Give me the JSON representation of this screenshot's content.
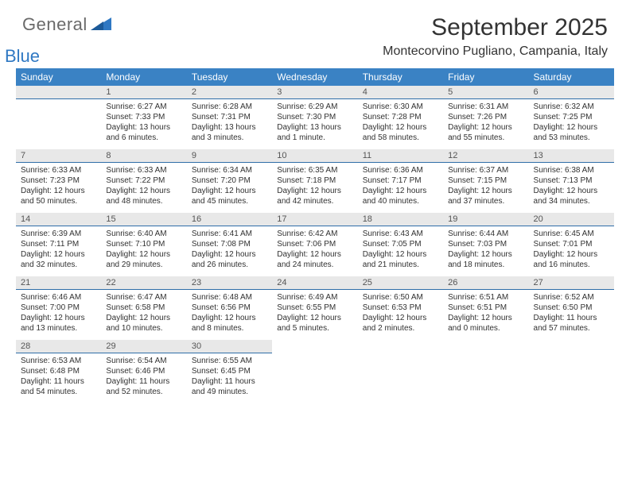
{
  "logo": {
    "general": "General",
    "blue": "Blue"
  },
  "title": "September 2025",
  "location": "Montecorvino Pugliano, Campania, Italy",
  "colors": {
    "header_bg": "#3a82c4",
    "header_text": "#ffffff",
    "band_bg": "#e8e8e8",
    "band_border": "#2f6ea8",
    "logo_blue": "#2f78c3",
    "logo_gray": "#6a6a6a"
  },
  "dow": [
    "Sunday",
    "Monday",
    "Tuesday",
    "Wednesday",
    "Thursday",
    "Friday",
    "Saturday"
  ],
  "weeks": [
    [
      {
        "num": "",
        "sunrise": "",
        "sunset": "",
        "daylight": ""
      },
      {
        "num": "1",
        "sunrise": "Sunrise: 6:27 AM",
        "sunset": "Sunset: 7:33 PM",
        "daylight": "Daylight: 13 hours and 6 minutes."
      },
      {
        "num": "2",
        "sunrise": "Sunrise: 6:28 AM",
        "sunset": "Sunset: 7:31 PM",
        "daylight": "Daylight: 13 hours and 3 minutes."
      },
      {
        "num": "3",
        "sunrise": "Sunrise: 6:29 AM",
        "sunset": "Sunset: 7:30 PM",
        "daylight": "Daylight: 13 hours and 1 minute."
      },
      {
        "num": "4",
        "sunrise": "Sunrise: 6:30 AM",
        "sunset": "Sunset: 7:28 PM",
        "daylight": "Daylight: 12 hours and 58 minutes."
      },
      {
        "num": "5",
        "sunrise": "Sunrise: 6:31 AM",
        "sunset": "Sunset: 7:26 PM",
        "daylight": "Daylight: 12 hours and 55 minutes."
      },
      {
        "num": "6",
        "sunrise": "Sunrise: 6:32 AM",
        "sunset": "Sunset: 7:25 PM",
        "daylight": "Daylight: 12 hours and 53 minutes."
      }
    ],
    [
      {
        "num": "7",
        "sunrise": "Sunrise: 6:33 AM",
        "sunset": "Sunset: 7:23 PM",
        "daylight": "Daylight: 12 hours and 50 minutes."
      },
      {
        "num": "8",
        "sunrise": "Sunrise: 6:33 AM",
        "sunset": "Sunset: 7:22 PM",
        "daylight": "Daylight: 12 hours and 48 minutes."
      },
      {
        "num": "9",
        "sunrise": "Sunrise: 6:34 AM",
        "sunset": "Sunset: 7:20 PM",
        "daylight": "Daylight: 12 hours and 45 minutes."
      },
      {
        "num": "10",
        "sunrise": "Sunrise: 6:35 AM",
        "sunset": "Sunset: 7:18 PM",
        "daylight": "Daylight: 12 hours and 42 minutes."
      },
      {
        "num": "11",
        "sunrise": "Sunrise: 6:36 AM",
        "sunset": "Sunset: 7:17 PM",
        "daylight": "Daylight: 12 hours and 40 minutes."
      },
      {
        "num": "12",
        "sunrise": "Sunrise: 6:37 AM",
        "sunset": "Sunset: 7:15 PM",
        "daylight": "Daylight: 12 hours and 37 minutes."
      },
      {
        "num": "13",
        "sunrise": "Sunrise: 6:38 AM",
        "sunset": "Sunset: 7:13 PM",
        "daylight": "Daylight: 12 hours and 34 minutes."
      }
    ],
    [
      {
        "num": "14",
        "sunrise": "Sunrise: 6:39 AM",
        "sunset": "Sunset: 7:11 PM",
        "daylight": "Daylight: 12 hours and 32 minutes."
      },
      {
        "num": "15",
        "sunrise": "Sunrise: 6:40 AM",
        "sunset": "Sunset: 7:10 PM",
        "daylight": "Daylight: 12 hours and 29 minutes."
      },
      {
        "num": "16",
        "sunrise": "Sunrise: 6:41 AM",
        "sunset": "Sunset: 7:08 PM",
        "daylight": "Daylight: 12 hours and 26 minutes."
      },
      {
        "num": "17",
        "sunrise": "Sunrise: 6:42 AM",
        "sunset": "Sunset: 7:06 PM",
        "daylight": "Daylight: 12 hours and 24 minutes."
      },
      {
        "num": "18",
        "sunrise": "Sunrise: 6:43 AM",
        "sunset": "Sunset: 7:05 PM",
        "daylight": "Daylight: 12 hours and 21 minutes."
      },
      {
        "num": "19",
        "sunrise": "Sunrise: 6:44 AM",
        "sunset": "Sunset: 7:03 PM",
        "daylight": "Daylight: 12 hours and 18 minutes."
      },
      {
        "num": "20",
        "sunrise": "Sunrise: 6:45 AM",
        "sunset": "Sunset: 7:01 PM",
        "daylight": "Daylight: 12 hours and 16 minutes."
      }
    ],
    [
      {
        "num": "21",
        "sunrise": "Sunrise: 6:46 AM",
        "sunset": "Sunset: 7:00 PM",
        "daylight": "Daylight: 12 hours and 13 minutes."
      },
      {
        "num": "22",
        "sunrise": "Sunrise: 6:47 AM",
        "sunset": "Sunset: 6:58 PM",
        "daylight": "Daylight: 12 hours and 10 minutes."
      },
      {
        "num": "23",
        "sunrise": "Sunrise: 6:48 AM",
        "sunset": "Sunset: 6:56 PM",
        "daylight": "Daylight: 12 hours and 8 minutes."
      },
      {
        "num": "24",
        "sunrise": "Sunrise: 6:49 AM",
        "sunset": "Sunset: 6:55 PM",
        "daylight": "Daylight: 12 hours and 5 minutes."
      },
      {
        "num": "25",
        "sunrise": "Sunrise: 6:50 AM",
        "sunset": "Sunset: 6:53 PM",
        "daylight": "Daylight: 12 hours and 2 minutes."
      },
      {
        "num": "26",
        "sunrise": "Sunrise: 6:51 AM",
        "sunset": "Sunset: 6:51 PM",
        "daylight": "Daylight: 12 hours and 0 minutes."
      },
      {
        "num": "27",
        "sunrise": "Sunrise: 6:52 AM",
        "sunset": "Sunset: 6:50 PM",
        "daylight": "Daylight: 11 hours and 57 minutes."
      }
    ],
    [
      {
        "num": "28",
        "sunrise": "Sunrise: 6:53 AM",
        "sunset": "Sunset: 6:48 PM",
        "daylight": "Daylight: 11 hours and 54 minutes."
      },
      {
        "num": "29",
        "sunrise": "Sunrise: 6:54 AM",
        "sunset": "Sunset: 6:46 PM",
        "daylight": "Daylight: 11 hours and 52 minutes."
      },
      {
        "num": "30",
        "sunrise": "Sunrise: 6:55 AM",
        "sunset": "Sunset: 6:45 PM",
        "daylight": "Daylight: 11 hours and 49 minutes."
      },
      {
        "num": "",
        "sunrise": "",
        "sunset": "",
        "daylight": ""
      },
      {
        "num": "",
        "sunrise": "",
        "sunset": "",
        "daylight": ""
      },
      {
        "num": "",
        "sunrise": "",
        "sunset": "",
        "daylight": ""
      },
      {
        "num": "",
        "sunrise": "",
        "sunset": "",
        "daylight": ""
      }
    ]
  ]
}
